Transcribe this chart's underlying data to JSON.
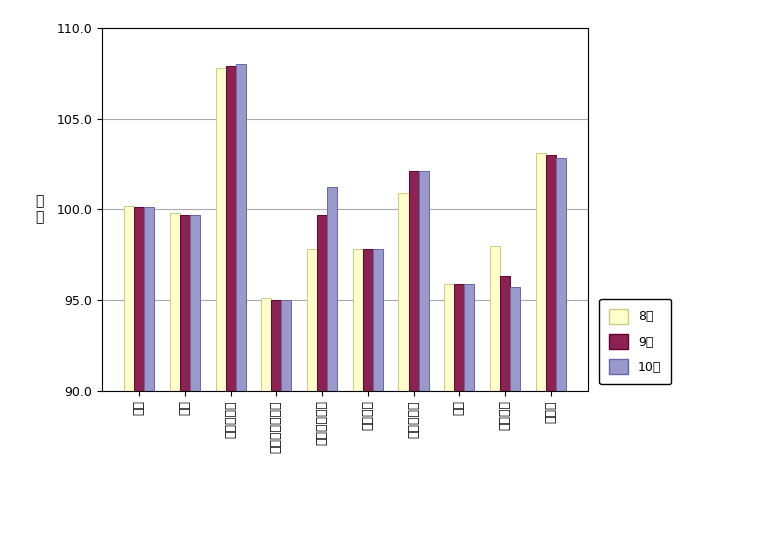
{
  "categories": [
    "食料",
    "住居",
    "光熱・水道",
    "家具・家事用品",
    "被服及び履物",
    "保健医療",
    "交通・通信",
    "教育",
    "教養娯楽",
    "諸雑費"
  ],
  "series_8": [
    100.2,
    99.8,
    107.8,
    95.1,
    97.8,
    97.8,
    100.9,
    95.9,
    98.0,
    103.1
  ],
  "series_9": [
    100.1,
    99.7,
    107.9,
    95.0,
    99.7,
    97.8,
    102.1,
    95.9,
    96.3,
    103.0
  ],
  "series_10": [
    100.1,
    99.7,
    108.0,
    95.0,
    101.2,
    97.8,
    102.1,
    95.9,
    95.7,
    102.8
  ],
  "legend_labels": [
    "8月",
    "9月",
    "10月"
  ],
  "bar_colors": [
    "#FFFFCC",
    "#8B2252",
    "#9999CC"
  ],
  "bar_edge_colors": [
    "#CCCC88",
    "#660033",
    "#6666AA"
  ],
  "ylabel": "指\n数",
  "ylim": [
    90.0,
    110.0
  ],
  "yticks": [
    90.0,
    95.0,
    100.0,
    105.0,
    110.0
  ],
  "grid_color": "#AAAAAA",
  "fig_bg_color": "#FFFFFF",
  "plot_bg_color": "#FFFFFF",
  "bar_width": 0.22
}
